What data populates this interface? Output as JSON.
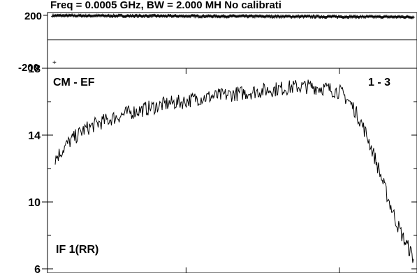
{
  "chart_data": [
    {
      "type": "scatter",
      "panel": "phase",
      "title": "Freq = 0.0005 GHz, BW = 2.000 MH  No calibrati",
      "y_ticks": [
        200,
        -200
      ],
      "ylim": [
        -200,
        200
      ],
      "xlim": [
        0,
        256
      ],
      "description_values": "noisy phase points near +175, slowly drifting to ~+170 at right",
      "series": [
        {
          "x_start": 0,
          "x_end": 256,
          "y_start": 178,
          "y_end": 168,
          "scatter": 6
        }
      ]
    },
    {
      "type": "line",
      "panel": "amplitude",
      "baseline": "CM - EF",
      "corr": "1 - 3",
      "polarization": "IF 1(RR)",
      "y_ticks": [
        18,
        14,
        10,
        6
      ],
      "ylim": [
        6,
        18
      ],
      "xlim": [
        0,
        256
      ],
      "series": [
        {
          "x": [
            0,
            10,
            20,
            30,
            40,
            50,
            60,
            70,
            80,
            90,
            100,
            110,
            120,
            130,
            140,
            150,
            160,
            170,
            180,
            190,
            200,
            205,
            210,
            215,
            220,
            225,
            230,
            235,
            240,
            245,
            250,
            252
          ],
          "values": [
            12.6,
            13.6,
            14.3,
            14.7,
            15.0,
            15.3,
            15.5,
            15.7,
            15.9,
            16.0,
            16.2,
            16.3,
            16.4,
            16.5,
            16.6,
            16.7,
            16.8,
            16.9,
            16.9,
            16.8,
            16.6,
            16.2,
            15.6,
            14.8,
            13.8,
            12.6,
            11.3,
            10.0,
            8.8,
            7.8,
            7.0,
            6.6
          ],
          "noise": 0.45
        }
      ]
    }
  ]
}
